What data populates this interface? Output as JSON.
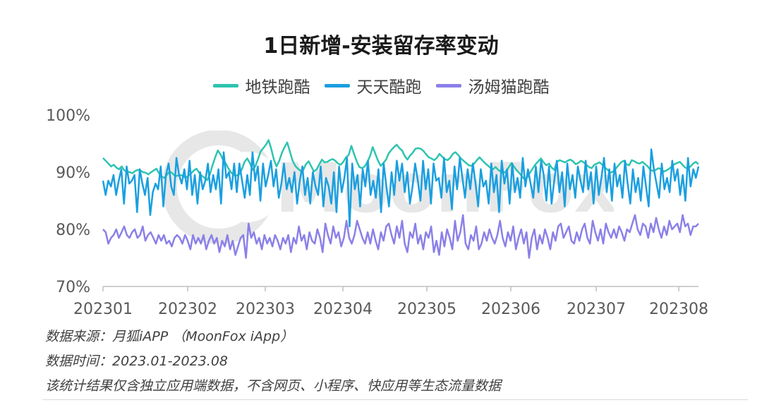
{
  "chart_data": {
    "type": "line",
    "title": "1日新增-安装留存率变动",
    "xlabel": "",
    "ylabel": "",
    "ylim": [
      70,
      100
    ],
    "y_ticks": [
      "70%",
      "80%",
      "90%",
      "100%"
    ],
    "x_ticks": [
      "202301",
      "202302",
      "202303",
      "202304",
      "202305",
      "202306",
      "202307",
      "202308"
    ],
    "legend_position": "top-center",
    "grid": false,
    "series": [
      {
        "name": "地铁跑酷",
        "color": "#2ec4b0",
        "key": "subway",
        "values": [
          92.5,
          92.0,
          91.5,
          91.0,
          91.3,
          90.8,
          90.5,
          91.0,
          90.3,
          90.1,
          90.0,
          89.8,
          90.2,
          90.4,
          90.3,
          90.0,
          89.9,
          89.6,
          90.0,
          90.3,
          90.6,
          89.8,
          89.2,
          89.0,
          89.6,
          90.1,
          89.8,
          89.3,
          89.4,
          89.5,
          89.3,
          89.0,
          89.4,
          89.8,
          90.3,
          90.6,
          89.9,
          89.4,
          89.0,
          88.6,
          89.6,
          91.2,
          92.6,
          93.8,
          93.1,
          92.1,
          91.5,
          90.6,
          89.9,
          89.5,
          89.4,
          89.6,
          90.5,
          91.8,
          92.4,
          91.6,
          90.4,
          91.0,
          92.2,
          93.6,
          94.2,
          94.8,
          95.6,
          94.1,
          92.2,
          91.0,
          92.0,
          93.4,
          94.4,
          95.2,
          93.6,
          92.0,
          91.1,
          90.6,
          90.2,
          90.4,
          91.4,
          91.9,
          91.0,
          90.1,
          90.5,
          91.4,
          92.2,
          91.7,
          91.8,
          92.1,
          92.3,
          92.0,
          91.5,
          91.3,
          91.8,
          92.6,
          93.0,
          94.6,
          93.2,
          91.9,
          90.9,
          90.7,
          91.0,
          91.8,
          92.8,
          94.4,
          93.2,
          92.0,
          91.1,
          91.6,
          92.2,
          93.3,
          93.9,
          94.4,
          94.8,
          94.2,
          93.8,
          92.8,
          92.2,
          92.9,
          93.4,
          94.1,
          94.2,
          94.1,
          93.7,
          93.1,
          92.6,
          92.4,
          92.1,
          92.5,
          93.2,
          92.7,
          92.3,
          92.1,
          92.5,
          93.2,
          93.5,
          93.0,
          92.4,
          92.0,
          91.6,
          91.2,
          91.1,
          91.5,
          92.1,
          92.6,
          92.1,
          91.6,
          91.2,
          90.8,
          90.5,
          90.9,
          90.4,
          90.1,
          89.8,
          90.2,
          90.9,
          91.6,
          90.9,
          90.3,
          89.8,
          89.2,
          88.7,
          89.2,
          90.0,
          90.7,
          91.4,
          91.9,
          92.4,
          91.7,
          91.2,
          91.5,
          90.8,
          90.4,
          91.8,
          92.1,
          91.9,
          91.7,
          92.0,
          92.2,
          91.9,
          91.4,
          91.6,
          92.0,
          91.7,
          91.3,
          90.9,
          90.7,
          91.3,
          91.5,
          91.7,
          91.3,
          90.8,
          90.4,
          89.9,
          90.1,
          90.6,
          91.2,
          91.7,
          92.0,
          91.4,
          91.2,
          92.1,
          91.9,
          91.6,
          91.5,
          91.8,
          91.4,
          91.0,
          90.4,
          90.2,
          90.4,
          90.7,
          90.5,
          90.1,
          90.3,
          90.6,
          91.0,
          91.4,
          91.6,
          91.8,
          91.3,
          90.8,
          90.6,
          91.0,
          91.5,
          91.8,
          91.4
        ]
      },
      {
        "name": "天天酷跑",
        "color": "#1a9fe0",
        "key": "everyday",
        "values": [
          88.5,
          86.0,
          88.5,
          87.5,
          89.5,
          86.0,
          88.5,
          90.5,
          84.5,
          91.0,
          88.0,
          88.5,
          89.5,
          83.0,
          90.5,
          88.0,
          86.0,
          89.0,
          82.5,
          86.5,
          88.0,
          87.0,
          91.0,
          84.0,
          89.5,
          91.5,
          87.5,
          86.0,
          92.5,
          89.5,
          88.0,
          90.5,
          87.0,
          92.0,
          86.0,
          89.5,
          84.5,
          90.0,
          87.0,
          88.5,
          91.5,
          86.5,
          89.5,
          87.0,
          90.5,
          84.5,
          93.5,
          89.0,
          90.0,
          87.0,
          91.5,
          86.5,
          91.5,
          88.5,
          85.5,
          89.5,
          86.0,
          93.5,
          88.5,
          91.0,
          85.0,
          91.5,
          87.5,
          89.5,
          92.0,
          87.5,
          90.5,
          85.5,
          88.0,
          91.5,
          87.0,
          89.0,
          86.5,
          90.0,
          84.5,
          88.5,
          91.0,
          86.0,
          89.0,
          84.5,
          90.0,
          87.5,
          86.0,
          91.0,
          84.0,
          89.0,
          87.5,
          84.5,
          90.0,
          83.0,
          91.0,
          86.5,
          89.0,
          92.5,
          80.5,
          91.5,
          87.0,
          89.5,
          84.0,
          90.5,
          87.5,
          92.0,
          86.0,
          88.5,
          85.5,
          90.5,
          83.0,
          91.5,
          87.5,
          84.0,
          90.0,
          86.0,
          92.0,
          88.5,
          91.5,
          86.5,
          90.0,
          84.5,
          87.5,
          91.5,
          88.5,
          85.0,
          92.0,
          87.0,
          90.5,
          84.5,
          91.5,
          88.5,
          89.0,
          85.5,
          92.5,
          86.5,
          88.5,
          83.5,
          91.0,
          87.0,
          92.5,
          89.0,
          85.5,
          90.5,
          87.0,
          91.5,
          88.0,
          84.0,
          90.5,
          87.5,
          88.5,
          84.5,
          91.5,
          86.5,
          89.5,
          83.0,
          92.0,
          88.0,
          90.5,
          84.5,
          91.5,
          86.5,
          89.0,
          85.5,
          92.5,
          87.5,
          90.5,
          88.0,
          85.5,
          91.0,
          86.5,
          92.0,
          89.5,
          85.0,
          91.0,
          84.5,
          88.5,
          92.0,
          86.5,
          90.0,
          84.0,
          91.5,
          87.0,
          89.5,
          85.5,
          91.0,
          88.5,
          86.5,
          92.0,
          87.0,
          90.0,
          84.5,
          91.0,
          86.0,
          89.0,
          92.5,
          86.5,
          90.5,
          85.0,
          91.5,
          87.5,
          89.5,
          85.5,
          92.0,
          88.0,
          84.5,
          90.5,
          86.5,
          89.0,
          85.0,
          91.0,
          87.5,
          84.0,
          94.0,
          90.5,
          88.0,
          85.5,
          91.5,
          87.0,
          89.0,
          86.5,
          92.0,
          88.5,
          90.5,
          86.0,
          89.5,
          85.0,
          92.5,
          87.5,
          90.5,
          89.0,
          91.0
        ]
      },
      {
        "name": "汤姆猫跑酷",
        "color": "#8b80e8",
        "key": "tom",
        "values": [
          80.0,
          79.5,
          77.5,
          78.5,
          79.0,
          80.0,
          78.5,
          79.5,
          80.5,
          79.0,
          78.5,
          79.5,
          80.0,
          78.5,
          79.0,
          80.5,
          78.0,
          79.0,
          79.5,
          78.5,
          77.5,
          79.0,
          78.0,
          79.0,
          77.5,
          78.0,
          77.0,
          78.5,
          79.0,
          78.5,
          77.5,
          79.0,
          78.0,
          76.5,
          79.0,
          77.5,
          78.5,
          77.5,
          79.0,
          76.5,
          78.0,
          79.0,
          77.5,
          78.5,
          76.0,
          78.0,
          77.0,
          79.0,
          76.5,
          78.0,
          75.5,
          77.0,
          78.5,
          79.0,
          75.0,
          81.0,
          78.5,
          79.5,
          77.5,
          78.5,
          76.5,
          79.0,
          77.5,
          78.5,
          77.0,
          79.0,
          78.0,
          76.5,
          78.5,
          77.5,
          79.0,
          76.0,
          78.5,
          77.5,
          80.5,
          78.0,
          79.0,
          76.5,
          79.5,
          78.0,
          77.5,
          80.0,
          78.5,
          76.0,
          81.0,
          79.0,
          77.5,
          80.5,
          78.5,
          79.5,
          77.0,
          78.5,
          81.5,
          78.5,
          77.5,
          79.0,
          81.5,
          80.0,
          78.5,
          77.5,
          79.5,
          77.5,
          80.0,
          78.0,
          76.5,
          79.5,
          78.0,
          80.5,
          81.0,
          79.0,
          77.5,
          80.5,
          78.5,
          81.5,
          77.5,
          76.0,
          79.5,
          78.5,
          81.0,
          77.5,
          79.0,
          76.5,
          79.5,
          78.5,
          80.5,
          76.0,
          78.0,
          75.5,
          79.5,
          77.0,
          80.0,
          78.5,
          76.5,
          81.5,
          78.0,
          79.5,
          82.5,
          77.5,
          76.5,
          79.0,
          78.0,
          80.5,
          76.5,
          77.5,
          79.5,
          78.0,
          80.0,
          78.5,
          77.5,
          79.0,
          81.5,
          78.5,
          77.0,
          79.5,
          78.0,
          80.5,
          76.5,
          78.5,
          80.0,
          77.5,
          79.5,
          75.0,
          78.5,
          80.0,
          76.5,
          79.0,
          77.5,
          80.0,
          78.5,
          76.5,
          79.5,
          78.0,
          80.5,
          81.0,
          78.5,
          79.5,
          80.5,
          78.0,
          77.5,
          79.5,
          78.0,
          80.0,
          81.0,
          78.5,
          77.5,
          81.5,
          79.5,
          78.0,
          80.0,
          77.5,
          81.0,
          79.5,
          78.5,
          80.0,
          78.5,
          80.5,
          79.5,
          78.0,
          80.0,
          79.5,
          81.0,
          82.5,
          80.0,
          79.0,
          81.0,
          80.5,
          78.5,
          81.0,
          79.5,
          82.0,
          80.0,
          78.5,
          80.5,
          79.0,
          81.5,
          80.0,
          80.5,
          81.0,
          79.5,
          82.5,
          80.5,
          81.0,
          79.0,
          80.5,
          80.5,
          81.0
        ]
      }
    ]
  },
  "notes": {
    "source": "数据来源：月狐iAPP （MoonFox iApp）",
    "period": "数据时间：2023.01-2023.08",
    "disclaimer": "该统计结果仅含独立应用端数据，不含网页、小程序、快应用等生态流量数据"
  },
  "watermark_text": "MoonFox"
}
